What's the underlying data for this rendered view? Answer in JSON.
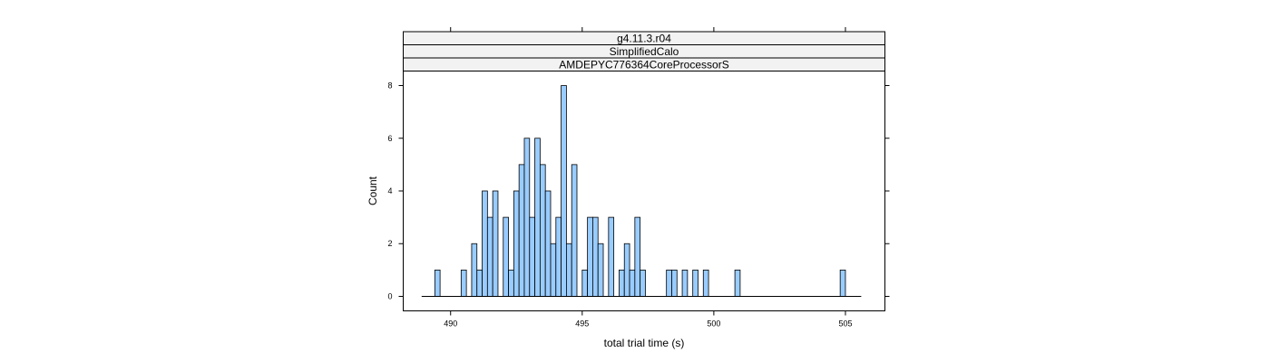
{
  "chart_data": {
    "type": "bar",
    "title": "",
    "strips": [
      "g4.11.3.r04",
      "SimplifiedCalo",
      "AMDEPYC776364CoreProcessorS"
    ],
    "xlabel": "total trial time (s)",
    "ylabel": "Count",
    "xlim": [
      488.2,
      506.5
    ],
    "ylim": [
      -0.55,
      8.55
    ],
    "xticks": [
      490,
      495,
      500,
      505
    ],
    "yticks": [
      0,
      2,
      4,
      6,
      8
    ],
    "bin_range": [
      488.9,
      505.6
    ],
    "bin_width": 0.2,
    "bins": [
      {
        "x": 489.5,
        "count": 1
      },
      {
        "x": 490.5,
        "count": 1
      },
      {
        "x": 490.9,
        "count": 2
      },
      {
        "x": 491.1,
        "count": 1
      },
      {
        "x": 491.3,
        "count": 4
      },
      {
        "x": 491.5,
        "count": 3
      },
      {
        "x": 491.7,
        "count": 4
      },
      {
        "x": 492.1,
        "count": 3
      },
      {
        "x": 492.3,
        "count": 1
      },
      {
        "x": 492.5,
        "count": 4
      },
      {
        "x": 492.7,
        "count": 5
      },
      {
        "x": 492.9,
        "count": 6
      },
      {
        "x": 493.1,
        "count": 3
      },
      {
        "x": 493.3,
        "count": 6
      },
      {
        "x": 493.5,
        "count": 5
      },
      {
        "x": 493.7,
        "count": 4
      },
      {
        "x": 493.9,
        "count": 2
      },
      {
        "x": 494.1,
        "count": 3
      },
      {
        "x": 494.3,
        "count": 8
      },
      {
        "x": 494.5,
        "count": 2
      },
      {
        "x": 494.7,
        "count": 5
      },
      {
        "x": 495.1,
        "count": 1
      },
      {
        "x": 495.3,
        "count": 3
      },
      {
        "x": 495.5,
        "count": 3
      },
      {
        "x": 495.7,
        "count": 2
      },
      {
        "x": 496.1,
        "count": 3
      },
      {
        "x": 496.5,
        "count": 1
      },
      {
        "x": 496.7,
        "count": 2
      },
      {
        "x": 496.9,
        "count": 1
      },
      {
        "x": 497.1,
        "count": 3
      },
      {
        "x": 497.3,
        "count": 1
      },
      {
        "x": 498.3,
        "count": 1
      },
      {
        "x": 498.5,
        "count": 1
      },
      {
        "x": 498.9,
        "count": 1
      },
      {
        "x": 499.3,
        "count": 1
      },
      {
        "x": 499.7,
        "count": 1
      },
      {
        "x": 500.9,
        "count": 1
      },
      {
        "x": 504.9,
        "count": 1
      }
    ],
    "bar_fill": "#99ccff",
    "bar_stroke": "#000000",
    "strip_fill": "#f2f2f2",
    "grid": false,
    "legend": "none"
  }
}
